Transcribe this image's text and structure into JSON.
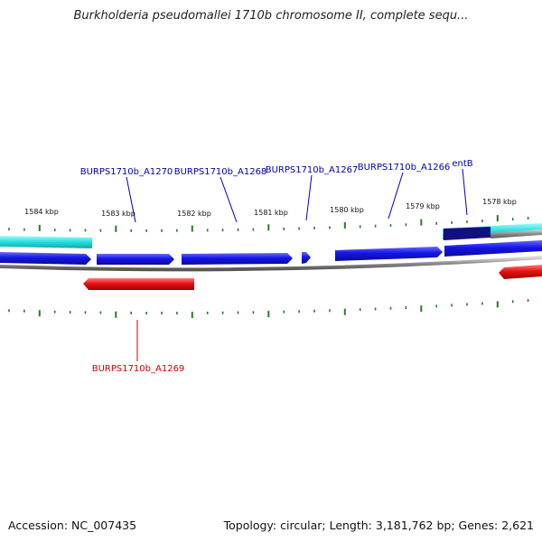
{
  "title": "Burkholderia pseudomallei 1710b chromosome II, complete sequ...",
  "footer": {
    "accession": "Accession: NC_007435",
    "summary": "Topology: circular; Length: 3,181,762 bp; Genes: 2,621"
  },
  "colors": {
    "forward_gene": "#1010e0",
    "reverse_gene": "#e81010",
    "forward_cds_track": "#22dddd",
    "dark_gene": "#101080",
    "backbone": "#888888",
    "ticks": "#2a7a2a",
    "forward_label": "#0000aa",
    "reverse_label": "#cc0000"
  },
  "kbp_ticks": [
    "1584 kbp",
    "1583 kbp",
    "1582 kbp",
    "1581 kbp",
    "1580 kbp",
    "1579 kbp",
    "1578 kbp"
  ],
  "genes": [
    {
      "label": "BURPS1710b_A1270",
      "strand": "forward"
    },
    {
      "label": "BURPS1710b_A1268",
      "strand": "forward"
    },
    {
      "label": "BURPS1710b_A1267",
      "strand": "forward"
    },
    {
      "label": "BURPS1710b_A1266",
      "strand": "forward"
    },
    {
      "label": "entB",
      "strand": "forward"
    },
    {
      "label": "BURPS1710b_A1269",
      "strand": "reverse"
    }
  ]
}
